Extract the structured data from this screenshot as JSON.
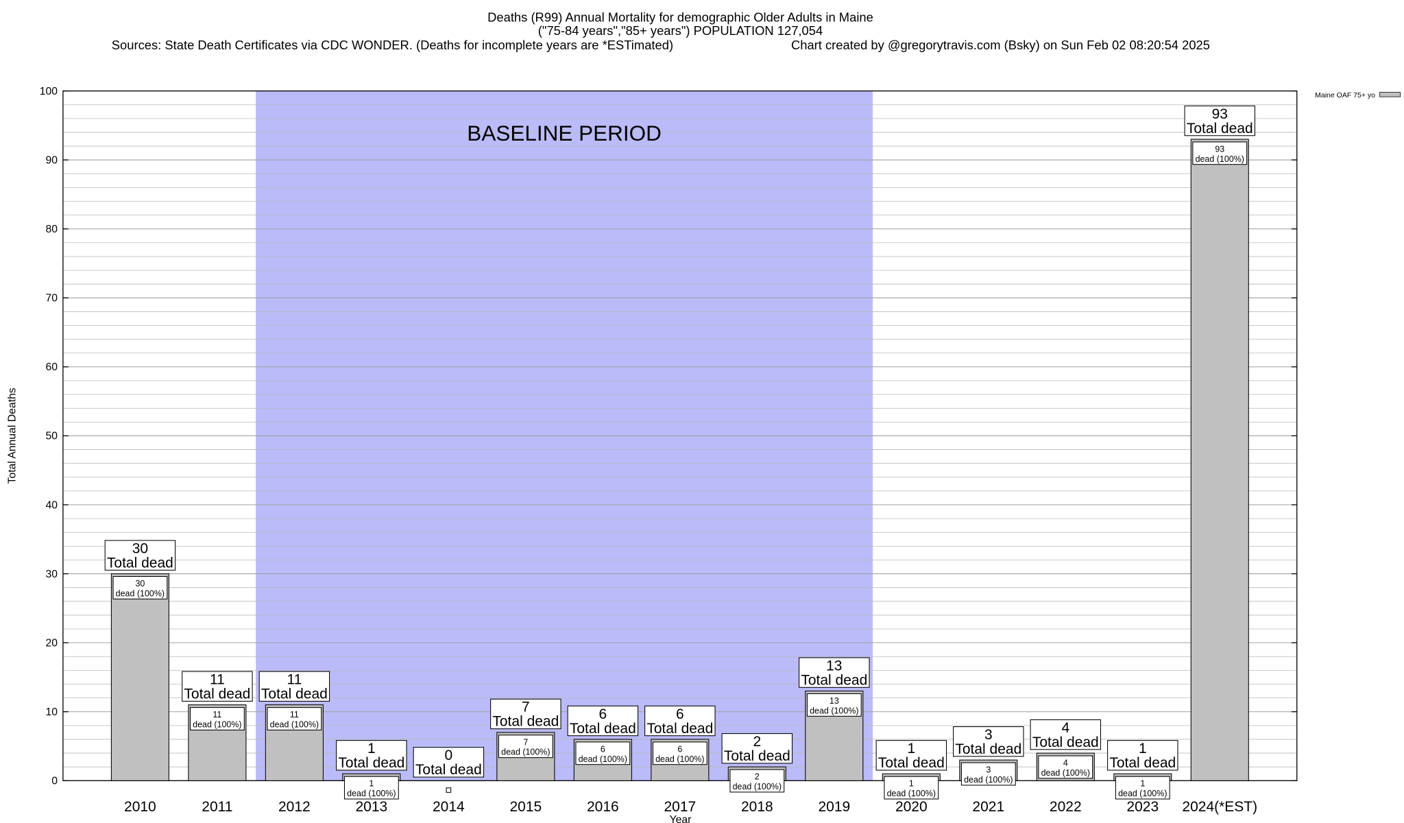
{
  "chart_data": {
    "type": "bar",
    "title": "Deaths (R99) Annual Mortality for demographic Older Adults in Maine",
    "subtitle": "(\"75-84 years\",\"85+ years\") POPULATION 127,054",
    "source": "Sources: State Death Certificates via CDC WONDER. (Deaths for incomplete years are *ESTimated)",
    "credit": "Chart created by @gregorytravis.com (Bsky) on Sun Feb 02 08:20:54 2025",
    "xlabel": "Year",
    "ylabel": "Total Annual Deaths",
    "categories": [
      "2010",
      "2011",
      "2012",
      "2013",
      "2014",
      "2015",
      "2016",
      "2017",
      "2018",
      "2019",
      "2020",
      "2021",
      "2022",
      "2023",
      "2024(*EST)"
    ],
    "series": [
      {
        "name": "Maine OAF 75+ yo",
        "color": "#c0c0c0",
        "values": [
          30,
          11,
          11,
          1,
          0,
          7,
          6,
          6,
          2,
          13,
          1,
          3,
          4,
          1,
          93
        ]
      }
    ],
    "total_label": "Total dead",
    "inner_label": "dead (100%)",
    "shaded_region": {
      "label": "BASELINE PERIOD",
      "start": "2012",
      "end": "2019",
      "color": "#bbbbf9"
    },
    "ylim": [
      0,
      100
    ],
    "yticks": [
      0,
      10,
      20,
      30,
      40,
      50,
      60,
      70,
      80,
      90,
      100
    ],
    "grid": true,
    "legend": "top-right"
  }
}
